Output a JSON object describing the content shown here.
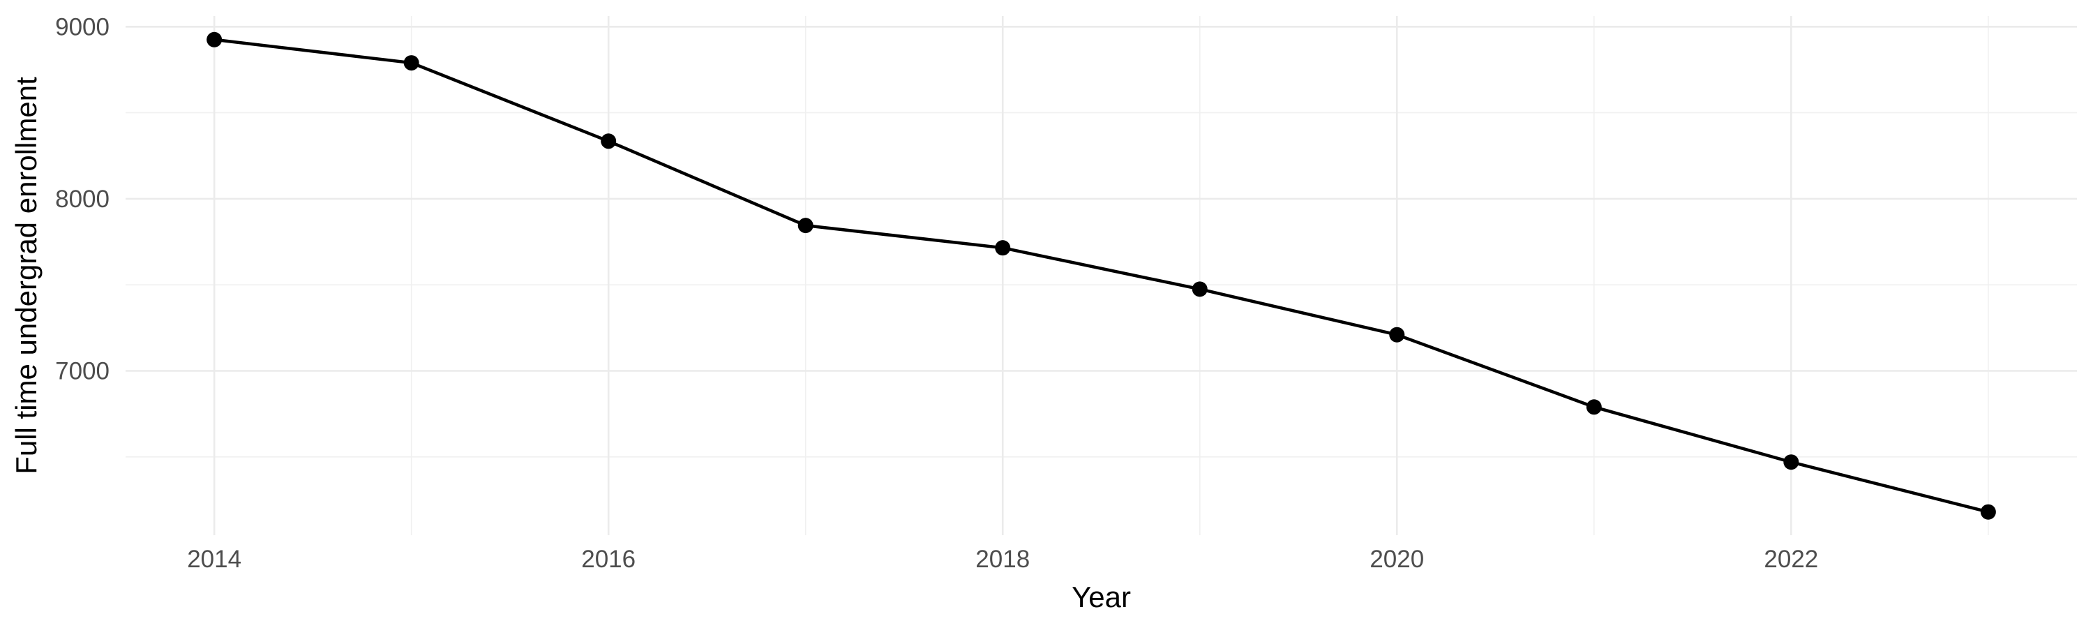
{
  "chart_data": {
    "type": "line",
    "title": "",
    "xlabel": "Year",
    "ylabel": "Full time undergrad enrollment",
    "x": [
      2014,
      2015,
      2016,
      2017,
      2018,
      2019,
      2020,
      2021,
      2022,
      2023
    ],
    "series": [
      {
        "name": "Full time undergrad enrollment",
        "values": [
          8925,
          8790,
          8335,
          7845,
          7715,
          7475,
          7210,
          6790,
          6470,
          6180
        ]
      }
    ],
    "x_major_ticks": [
      2014,
      2016,
      2018,
      2020,
      2022
    ],
    "x_tick_labels": [
      "2014",
      "2016",
      "2018",
      "2020",
      "2022"
    ],
    "x_minor_gridlines": [
      2015,
      2017,
      2019,
      2021,
      2023
    ],
    "y_major_ticks": [
      9000,
      8000,
      7000
    ],
    "y_tick_labels": [
      "9000",
      "8000",
      "7000"
    ],
    "y_minor_gridlines": [
      8500,
      7500,
      6500
    ],
    "xlim": [
      2013.55,
      2023.45
    ],
    "ylim": [
      6045,
      9062
    ],
    "grid": "on",
    "legend": "none",
    "colors": {
      "background": "#FFFFFF",
      "line": "#000000",
      "marker": "#000000",
      "grid_major": "#EBEBEB",
      "grid_minor": "#F0F0F0",
      "tick_label": "#4D4D4D",
      "axis_title": "#000000"
    },
    "marker_radius": 11,
    "line_width": 4.5
  }
}
